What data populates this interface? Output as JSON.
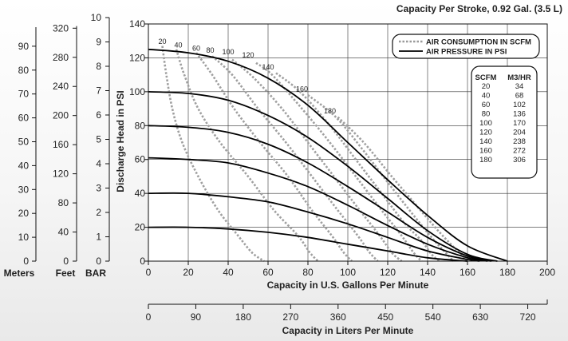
{
  "chart_data": {
    "type": "line",
    "title": "Capacity Per Stroke, 0.92 Gal. (3.5 L)",
    "xlabel": "Capacity in U.S. Gallons Per Minute",
    "ylabel": "Discharge Head in PSI",
    "xlim": [
      0,
      200
    ],
    "ylim": [
      0,
      140
    ],
    "x_ticks": [
      0,
      20,
      40,
      60,
      80,
      100,
      120,
      140,
      160,
      180,
      200
    ],
    "y_ticks": [
      0,
      20,
      40,
      60,
      80,
      100,
      120,
      140
    ],
    "grid": true,
    "legend": {
      "position": "top-right",
      "entries": [
        {
          "label": "AIR CONSUMPTION IN SCFM",
          "style": "dotted",
          "color": "#9a9a9a"
        },
        {
          "label": "AIR PRESSURE IN PSI",
          "style": "solid",
          "color": "#000000"
        }
      ]
    },
    "secondary_x_axis": {
      "label": "Capacity in Liters Per Minute",
      "ticks": [
        0,
        90,
        180,
        270,
        360,
        450,
        540,
        630,
        720
      ]
    },
    "secondary_y_axes": [
      {
        "unit": "BAR",
        "ticks": [
          0,
          1,
          2,
          3,
          4,
          5,
          6,
          7,
          8,
          9,
          10
        ]
      },
      {
        "unit": "Feet",
        "ticks": [
          0,
          40,
          80,
          120,
          160,
          200,
          240,
          280,
          320
        ]
      },
      {
        "unit": "Meters",
        "ticks": [
          0,
          10,
          20,
          30,
          40,
          50,
          60,
          70,
          80,
          90
        ]
      }
    ],
    "pressure_series": [
      {
        "psi": 120,
        "x": [
          0,
          20,
          40,
          60,
          80,
          100,
          120,
          140,
          160,
          180
        ],
        "y": [
          125,
          123,
          118,
          108,
          92,
          70,
          48,
          27,
          9,
          0
        ]
      },
      {
        "psi": 100,
        "x": [
          0,
          20,
          40,
          60,
          80,
          100,
          120,
          140,
          160,
          175
        ],
        "y": [
          100,
          99,
          95,
          86,
          73,
          56,
          37,
          18,
          4,
          0
        ]
      },
      {
        "psi": 80,
        "x": [
          0,
          20,
          40,
          60,
          80,
          100,
          120,
          140,
          160,
          172
        ],
        "y": [
          80,
          79,
          76,
          69,
          58,
          44,
          29,
          14,
          3,
          0
        ]
      },
      {
        "psi": 60,
        "x": [
          0,
          20,
          40,
          60,
          80,
          100,
          120,
          140,
          160,
          170
        ],
        "y": [
          61,
          60,
          58,
          52,
          44,
          33,
          21,
          10,
          2,
          0
        ]
      },
      {
        "psi": 40,
        "x": [
          0,
          20,
          40,
          60,
          80,
          100,
          120,
          140,
          160,
          166
        ],
        "y": [
          40,
          40,
          38,
          35,
          29,
          22,
          14,
          6,
          1,
          0
        ]
      },
      {
        "psi": 20,
        "x": [
          0,
          20,
          40,
          60,
          80,
          100,
          120,
          140,
          160
        ],
        "y": [
          20,
          20,
          19,
          17,
          14,
          10,
          6,
          2,
          0
        ]
      }
    ],
    "air_consumption_series": [
      {
        "scfm": 20,
        "label_at": [
          7,
          130
        ],
        "x": [
          7,
          9,
          12,
          17,
          25,
          35,
          45,
          52,
          58
        ],
        "y": [
          127,
          110,
          90,
          70,
          50,
          30,
          15,
          5,
          0
        ]
      },
      {
        "scfm": 40,
        "label_at": [
          15,
          128
        ],
        "x": [
          14,
          18,
          25,
          36,
          50,
          63,
          75,
          81,
          85
        ],
        "y": [
          125,
          110,
          90,
          70,
          50,
          30,
          15,
          5,
          0
        ]
      },
      {
        "scfm": 60,
        "label_at": [
          24,
          126
        ],
        "x": [
          24,
          32,
          43,
          56,
          70,
          82,
          92,
          98,
          102
        ],
        "y": [
          123,
          110,
          90,
          70,
          50,
          30,
          15,
          5,
          0
        ]
      },
      {
        "scfm": 80,
        "label_at": [
          31,
          125
        ],
        "x": [
          32,
          42,
          55,
          69,
          82,
          95,
          105,
          111,
          115
        ],
        "y": [
          121,
          110,
          90,
          70,
          50,
          30,
          15,
          5,
          0
        ]
      },
      {
        "scfm": 100,
        "label_at": [
          40,
          124
        ],
        "x": [
          42,
          53,
          67,
          80,
          93,
          106,
          116,
          122,
          127
        ],
        "y": [
          119,
          108,
          90,
          70,
          50,
          30,
          15,
          5,
          0
        ]
      },
      {
        "scfm": 120,
        "label_at": [
          50,
          122
        ],
        "x": [
          54,
          62,
          77,
          91,
          104,
          117,
          127,
          133,
          137
        ],
        "y": [
          117,
          110,
          90,
          70,
          50,
          30,
          15,
          5,
          0
        ]
      },
      {
        "scfm": 140,
        "label_at": [
          60,
          115
        ],
        "x": [
          64,
          76,
          91,
          104,
          117,
          128,
          137,
          142,
          146
        ],
        "y": [
          111,
          100,
          80,
          60,
          40,
          23,
          12,
          4,
          0
        ]
      },
      {
        "scfm": 160,
        "label_at": [
          77,
          102
        ],
        "x": [
          80,
          94,
          108,
          121,
          133,
          142,
          149,
          153
        ],
        "y": [
          98,
          85,
          65,
          45,
          27,
          14,
          5,
          0
        ]
      },
      {
        "scfm": 180,
        "label_at": [
          91,
          89
        ],
        "x": [
          95,
          108,
          122,
          135,
          146,
          155,
          160
        ],
        "y": [
          85,
          70,
          50,
          32,
          17,
          6,
          0
        ]
      }
    ],
    "conversion_table": {
      "headers": [
        "SCFM",
        "M3/HR"
      ],
      "rows": [
        [
          "20",
          "34"
        ],
        [
          "40",
          "68"
        ],
        [
          "60",
          "102"
        ],
        [
          "80",
          "136"
        ],
        [
          "100",
          "170"
        ],
        [
          "120",
          "204"
        ],
        [
          "140",
          "238"
        ],
        [
          "160",
          "272"
        ],
        [
          "180",
          "306"
        ]
      ]
    }
  }
}
